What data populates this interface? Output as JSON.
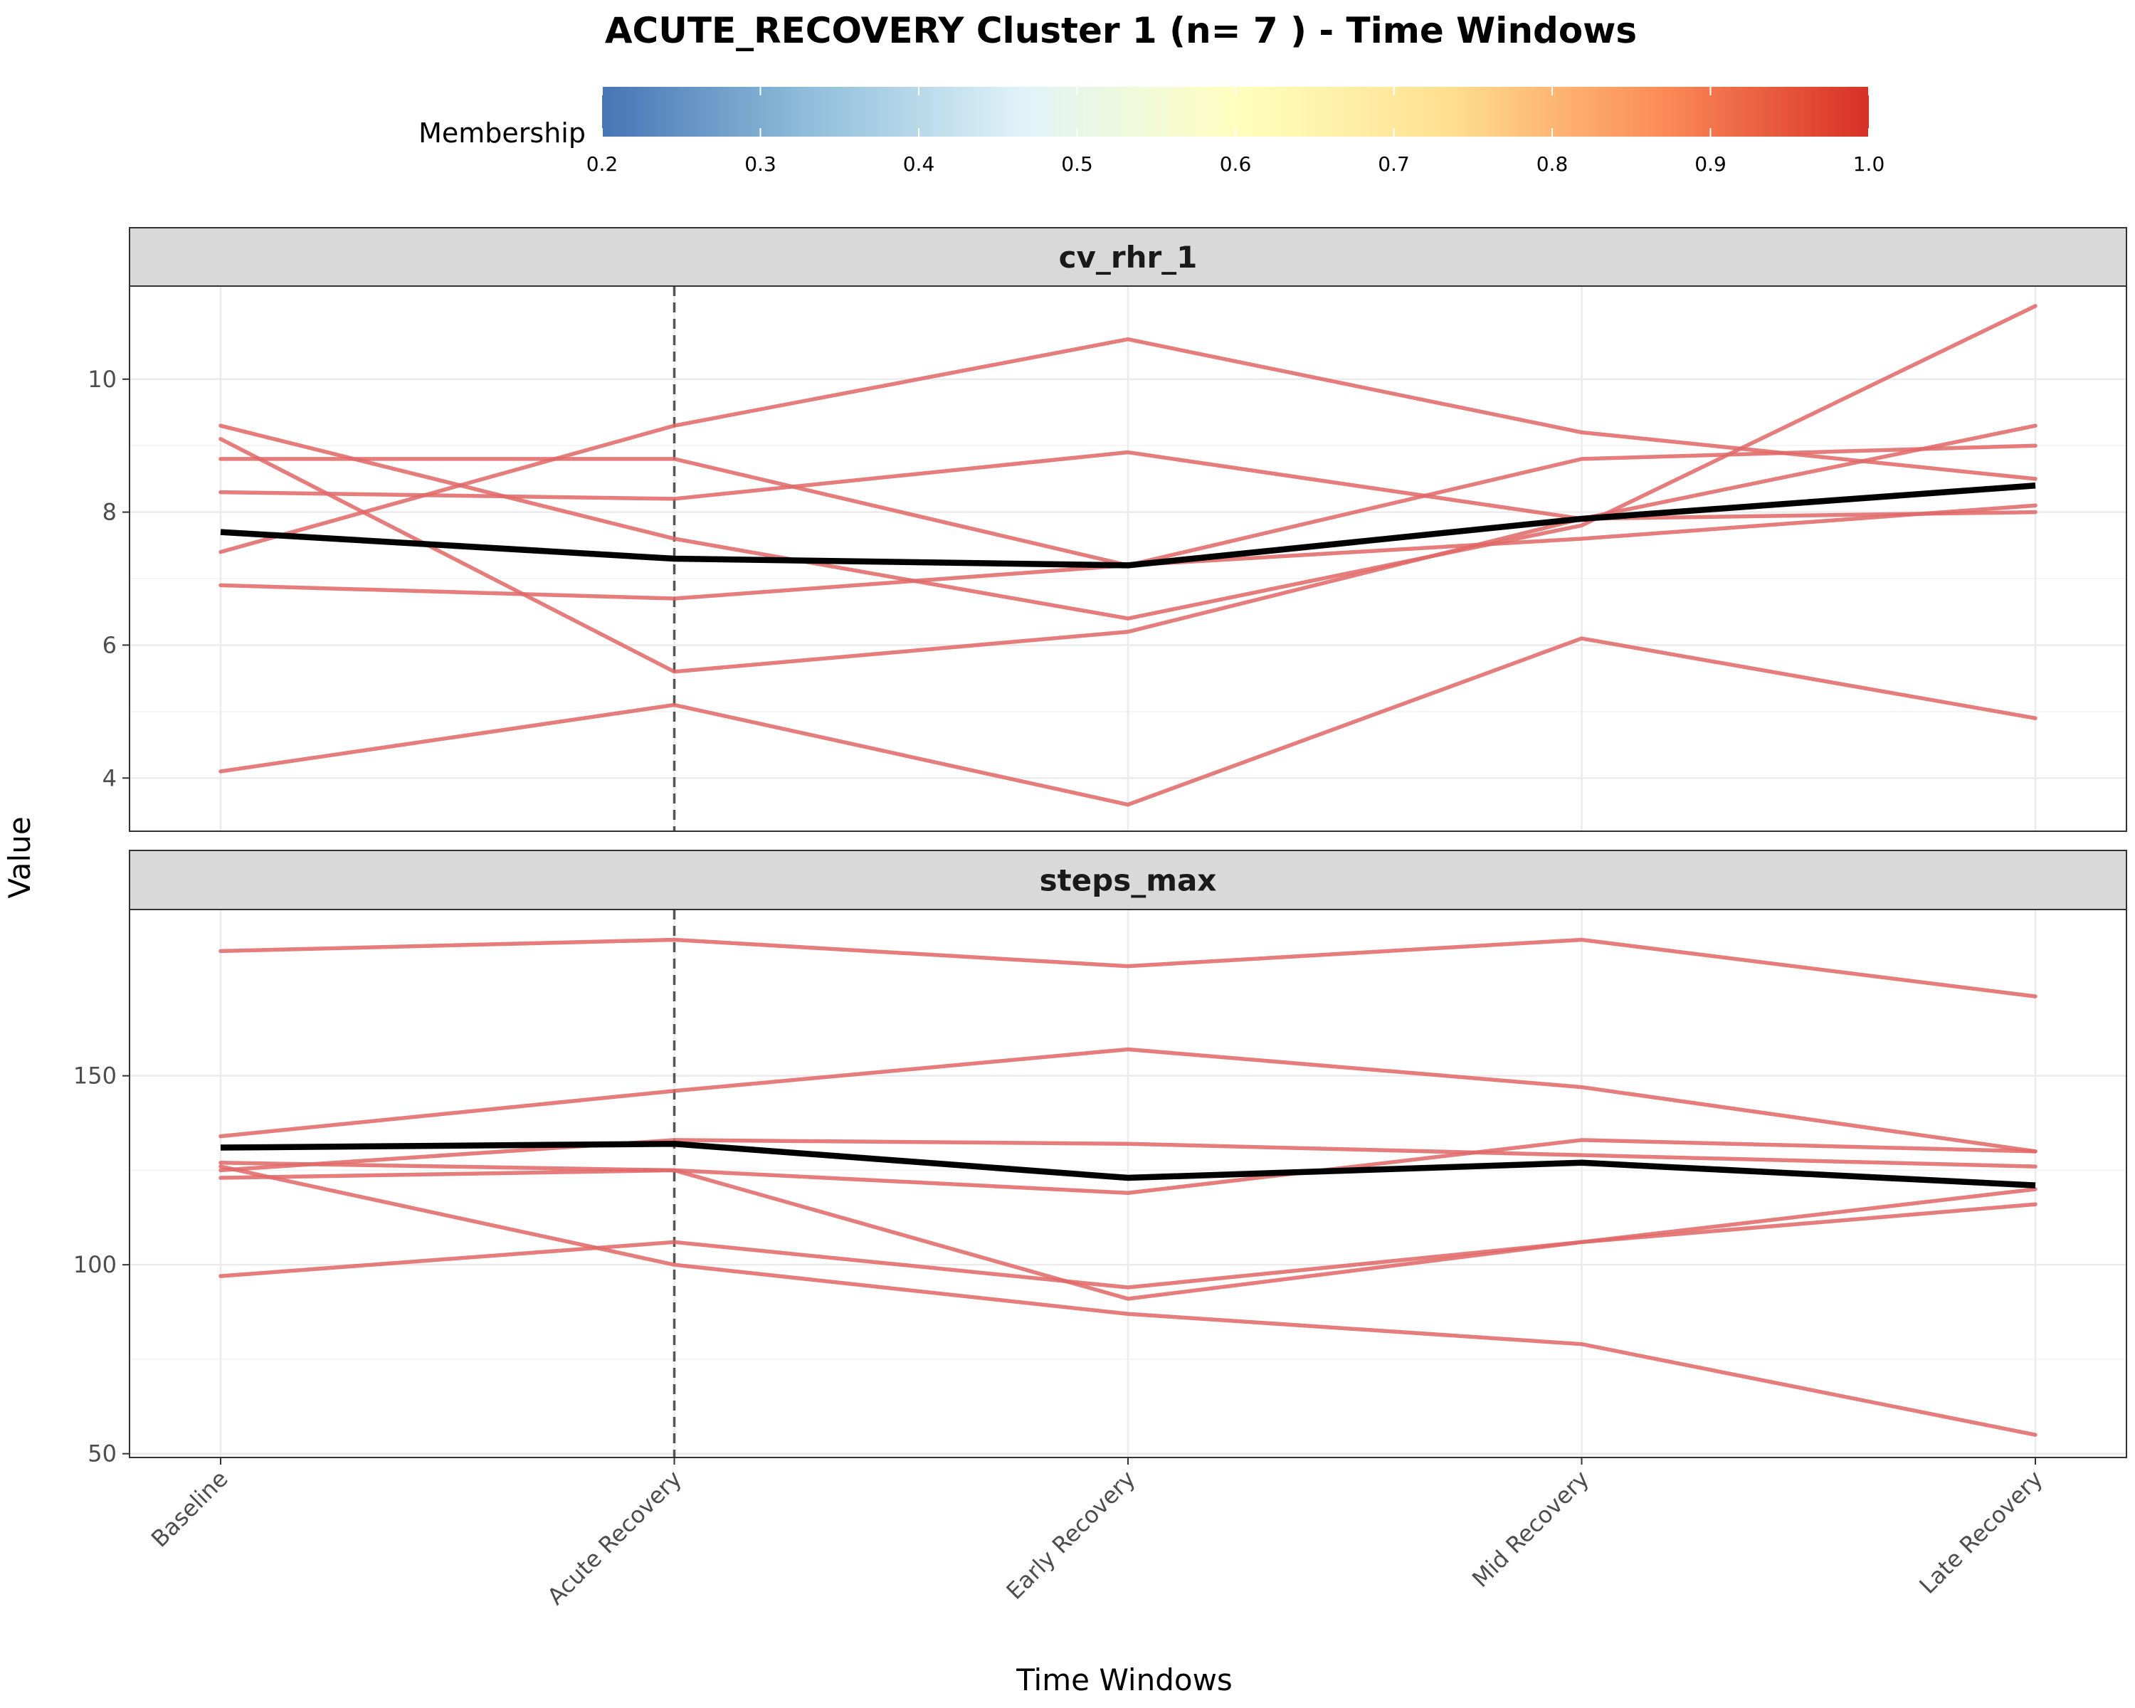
{
  "chart_data": {
    "type": "line",
    "title": "ACUTE_RECOVERY Cluster 1 (n= 7 ) - Time Windows",
    "xlabel": "Time Windows",
    "ylabel": "Value",
    "categories": [
      "Baseline",
      "Acute Recovery",
      "Early Recovery",
      "Mid Recovery",
      "Late Recovery"
    ],
    "reference_line_category": "Acute Recovery",
    "legend": {
      "title": "Membership",
      "range": [
        0.2,
        1.0
      ],
      "ticks": [
        "0.2",
        "0.3",
        "0.4",
        "0.5",
        "0.6",
        "0.7",
        "0.8",
        "0.9",
        "1.0"
      ],
      "colors": [
        "#4575b4",
        "#91bfdb",
        "#e0f3f8",
        "#ffffbf",
        "#fee090",
        "#fc8d59",
        "#d73027"
      ],
      "placement": "top"
    },
    "line_color": "#e06666",
    "mean_color": "#000000",
    "grid": true,
    "panels": [
      {
        "name": "cv_rhr_1",
        "ylim": [
          3.2,
          11.4
        ],
        "yticks": [
          4,
          6,
          8,
          10
        ],
        "series": [
          {
            "values": [
              9.3,
              7.6,
              6.4,
              7.8,
              11.1
            ]
          },
          {
            "values": [
              7.4,
              9.3,
              10.6,
              9.2,
              8.5
            ]
          },
          {
            "values": [
              8.8,
              8.8,
              7.2,
              7.6,
              8.1
            ]
          },
          {
            "values": [
              8.3,
              8.2,
              8.9,
              7.9,
              8.0
            ]
          },
          {
            "values": [
              6.9,
              6.7,
              7.2,
              8.8,
              9.0
            ]
          },
          {
            "values": [
              9.1,
              5.6,
              6.2,
              7.9,
              9.3
            ]
          },
          {
            "values": [
              4.1,
              5.1,
              3.6,
              6.1,
              4.9
            ]
          }
        ],
        "mean": [
          7.7,
          7.3,
          7.2,
          7.9,
          8.4
        ]
      },
      {
        "name": "steps_max",
        "ylim": [
          49,
          194
        ],
        "yticks": [
          50,
          100,
          150
        ],
        "series": [
          {
            "values": [
              183,
              186,
              179,
              186,
              171
            ]
          },
          {
            "values": [
              134,
              146,
              157,
              147,
              130
            ]
          },
          {
            "values": [
              125,
              133,
              132,
              129,
              126
            ]
          },
          {
            "values": [
              123,
              125,
              119,
              133,
              130
            ]
          },
          {
            "values": [
              127,
              125,
              91,
              106,
              120
            ]
          },
          {
            "values": [
              97,
              106,
              94,
              106,
              116
            ]
          },
          {
            "values": [
              126,
              100,
              87,
              79,
              55
            ]
          }
        ],
        "mean": [
          131,
          132,
          123,
          127,
          121
        ]
      }
    ]
  }
}
